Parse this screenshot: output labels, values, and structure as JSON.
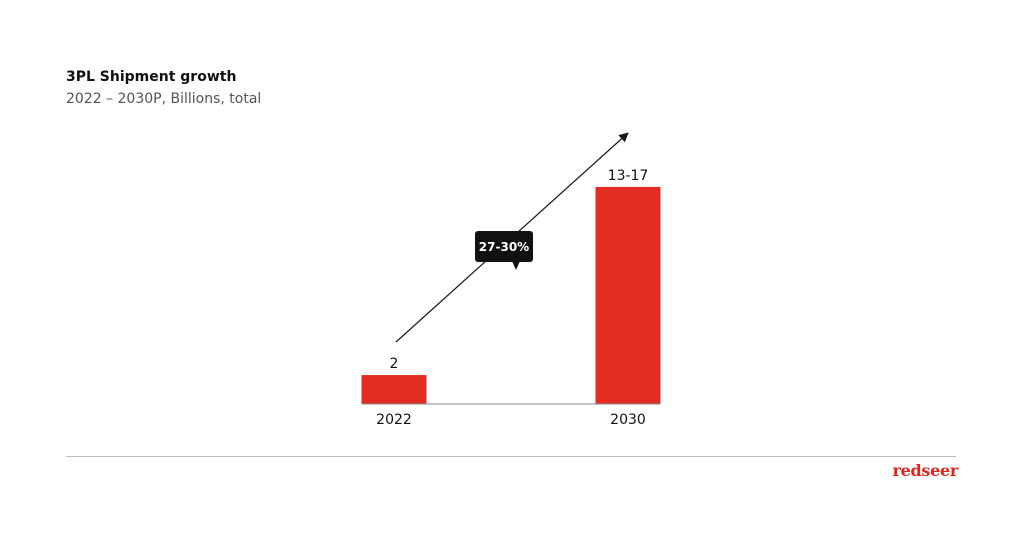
{
  "header": {
    "title": "3PL Shipment growth",
    "subtitle": "2022 – 2030P, Billions, total"
  },
  "brand": {
    "logo_text": "redseer",
    "accent_color": "#e32d22"
  },
  "chart_data": {
    "type": "bar",
    "title": "3PL Shipment growth",
    "subtitle": "2022 – 2030P, Billions, total",
    "categories": [
      "2022",
      "2030"
    ],
    "values": [
      2,
      15
    ],
    "data_labels": [
      "2",
      "13-17"
    ],
    "annotation": "27-30%",
    "xlabel": "",
    "ylabel": "",
    "ylim": [
      0,
      17
    ],
    "grid": false,
    "bar_color": "#e32d22"
  }
}
